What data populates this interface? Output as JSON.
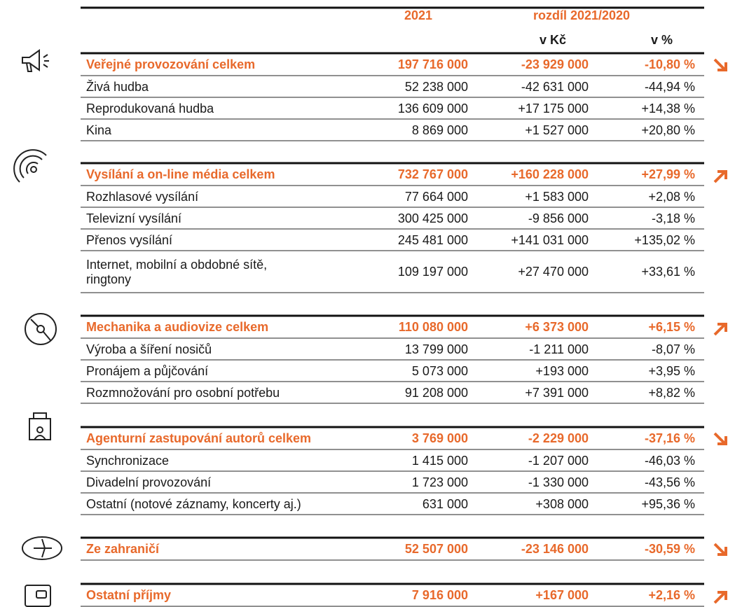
{
  "header": {
    "year": "2021",
    "diff": "rozdíl 2021/2020",
    "kc": "v Kč",
    "pct": "v %"
  },
  "sections": [
    {
      "total": [
        "Veřejné provozování celkem",
        "197 716 000",
        "-23 929 000",
        "-10,80 %"
      ],
      "rows": [
        [
          "Živá hudba",
          "52 238 000",
          "-42 631 000",
          "-44,94 %"
        ],
        [
          "Reprodukovaná hudba",
          "136 609 000",
          "+17 175 000",
          "+14,38 %"
        ],
        [
          "Kina",
          "8 869 000",
          "+1 527 000",
          "+20,80 %"
        ]
      ]
    },
    {
      "total": [
        "Vysílání a on-line média celkem",
        "732 767 000",
        "+160 228 000",
        "+27,99 %"
      ],
      "rows": [
        [
          "Rozhlasové vysílání",
          "77 664 000",
          "+1 583 000",
          "+2,08 %"
        ],
        [
          "Televizní vysílání",
          "300 425 000",
          "-9 856 000",
          "-3,18 %"
        ],
        [
          "Přenos vysílání",
          "245 481 000",
          "+141 031 000",
          "+135,02 %"
        ],
        [
          [
            "Internet, mobilní a obdobné sítě,",
            "ringtony"
          ],
          "109 197 000",
          "+27 470 000",
          "+33,61 %"
        ]
      ]
    },
    {
      "total": [
        "Mechanika a audiovize celkem",
        "110 080 000",
        "+6 373 000",
        "+6,15 %"
      ],
      "rows": [
        [
          "Výroba a šíření nosičů",
          "13 799 000",
          "-1 211 000",
          "-8,07 %"
        ],
        [
          "Pronájem a půjčování",
          "5 073 000",
          "+193 000",
          "+3,95 %"
        ],
        [
          "Rozmnožování pro osobní potřebu",
          "91 208 000",
          "+7 391 000",
          "+8,82 %"
        ]
      ]
    },
    {
      "total": [
        "Agenturní zastupování autorů celkem",
        "3 769 000",
        "-2 229 000",
        "-37,16 %"
      ],
      "rows": [
        [
          "Synchronizace",
          "1 415 000",
          "-1 207 000",
          "-46,03 %"
        ],
        [
          "Divadelní provozování",
          "1 723 000",
          "-1 330 000",
          "-43,56 %"
        ],
        [
          "Ostatní (notové záznamy, koncerty aj.)",
          "631 000",
          "+308 000",
          "+95,36 %"
        ]
      ]
    },
    {
      "total": [
        "Ze zahraničí",
        "52 507 000",
        "-23 146 000",
        "-30,59 %"
      ],
      "rows": []
    },
    {
      "total": [
        "Ostatní příjmy",
        "7 916 000",
        "+167 000",
        "+2,16 %"
      ],
      "rows": []
    }
  ]
}
